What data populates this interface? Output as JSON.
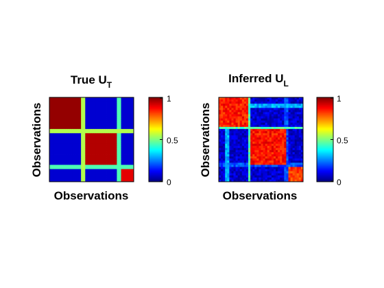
{
  "chart_data": [
    {
      "type": "heatmap",
      "title": "True U",
      "title_subscript": "T",
      "xlabel": "Observations",
      "ylabel": "Observations",
      "colormap": "jet",
      "clim": [
        0,
        1
      ],
      "colorbar_ticks": [
        "0",
        "0.5",
        "1"
      ],
      "blocks": [
        {
          "start": 0.0,
          "end": 0.38,
          "value": 0.98
        },
        {
          "start": 0.42,
          "end": 0.81,
          "value": 0.95
        },
        {
          "start": 0.84,
          "end": 1.0,
          "value": 0.9
        }
      ],
      "background_value": 0.08,
      "bands": [
        {
          "pos": 0.4,
          "value": 0.55
        },
        {
          "pos": 0.82,
          "value": 0.45
        }
      ]
    },
    {
      "type": "heatmap",
      "title": "Inferred U",
      "title_subscript": "L",
      "xlabel": "Observations",
      "ylabel": "Observations",
      "colormap": "jet",
      "clim": [
        0,
        1
      ],
      "colorbar_ticks": [
        "0",
        "0.5",
        "1"
      ],
      "blocks": [
        {
          "start": 0.0,
          "end": 0.35,
          "value": 0.85
        },
        {
          "start": 0.38,
          "end": 0.79,
          "value": 0.86
        },
        {
          "start": 0.82,
          "end": 1.0,
          "value": 0.82
        }
      ],
      "background_value": 0.08,
      "bands": [
        {
          "pos": 0.36,
          "value": 0.45
        },
        {
          "pos": 0.1,
          "value": 0.3
        },
        {
          "pos": 0.8,
          "value": 0.2
        }
      ]
    }
  ]
}
